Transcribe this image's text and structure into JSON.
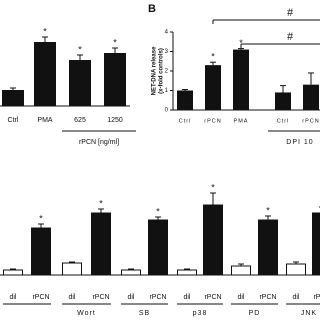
{
  "chart_data": [
    {
      "type": "bar",
      "categories": [
        "Ctrl",
        "PMA",
        "625",
        "1250"
      ],
      "values": [
        16,
        64,
        46,
        53
      ],
      "errors": [
        2,
        5,
        5,
        5
      ],
      "significance": [
        null,
        "*",
        "*",
        "*"
      ],
      "x_label": "rPCN [ng/ml]",
      "color": "#111111"
    },
    {
      "type": "bar",
      "panel_label": "B",
      "y_label": [
        "NET-DNA release",
        "(x-fold controls)"
      ],
      "categories": [
        "Ctrl",
        "rPCN",
        "PMA",
        "Ctrl",
        "rPCN"
      ],
      "values": [
        1.0,
        2.3,
        3.1,
        0.9,
        1.3
      ],
      "errors": [
        0.05,
        0.15,
        0.05,
        0.35,
        0.6
      ],
      "significance": [
        null,
        "*",
        "*",
        null,
        null
      ],
      "ylim": [
        0,
        4
      ],
      "yticks": [
        0,
        1,
        2,
        3,
        4
      ],
      "group_label": "DPI 10",
      "brackets": [
        {
          "label": "#",
          "from": 1,
          "to": 4
        },
        {
          "label": "#",
          "from": 2,
          "to": 4
        }
      ],
      "color": "#111111"
    },
    {
      "type": "grouped_bar",
      "groups": [
        null,
        "Wort",
        "SB",
        "p38",
        "PD",
        "JNK"
      ],
      "series": [
        {
          "name": "dil",
          "color": "#ffffff",
          "values": [
            5,
            12,
            5,
            5,
            9,
            11
          ],
          "errors": [
            1,
            1,
            1,
            1,
            2,
            2
          ]
        },
        {
          "name": "rPCN",
          "color": "#111111",
          "values": [
            47,
            62,
            55,
            70,
            55,
            62
          ],
          "errors": [
            4,
            4,
            3,
            12,
            4,
            6
          ],
          "significance": [
            "*",
            "*",
            "*",
            "*",
            "*",
            "*"
          ]
        }
      ]
    }
  ]
}
